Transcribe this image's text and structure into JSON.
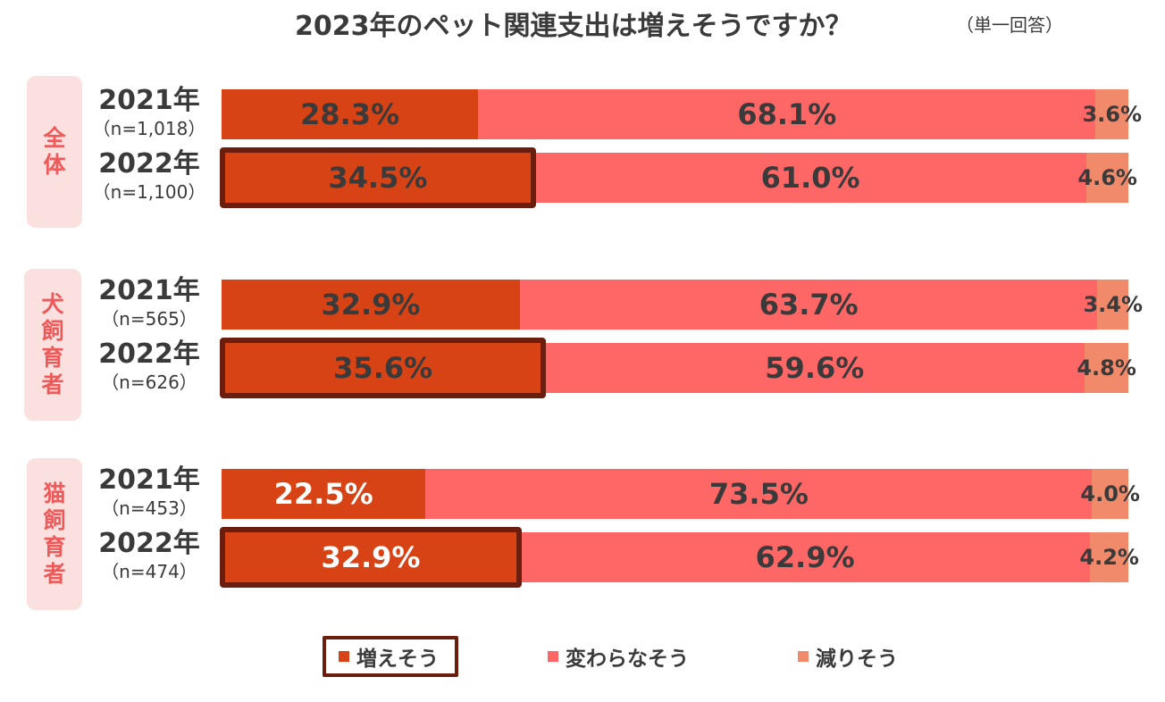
{
  "title": "2023年のペット関連支出は増えそうですか？",
  "subtitle": "（単一回答）",
  "colors": {
    "increase": "#d84315",
    "same": "#ff6666",
    "decrease": "#f08a6a",
    "highlight_border": "#6b1d0e",
    "group_bg": "#fbe0e0",
    "group_text": "#ee5a5a"
  },
  "chart_data": {
    "type": "bar",
    "orientation": "horizontal-stacked-100",
    "series": [
      {
        "name": "増えそう",
        "values": [
          28.3,
          34.5,
          32.9,
          35.6,
          22.5,
          32.9
        ]
      },
      {
        "name": "変わらなそう",
        "values": [
          68.1,
          61.0,
          63.7,
          59.6,
          73.5,
          62.9
        ]
      },
      {
        "name": "減りそう",
        "values": [
          3.6,
          4.6,
          3.4,
          4.8,
          4.0,
          4.2
        ]
      }
    ],
    "groups": [
      {
        "label": "全体",
        "rows": [
          {
            "year": "2021年",
            "n": "（n=1,018）",
            "values": [
              28.3,
              68.1,
              3.6
            ],
            "labels": [
              "28.3%",
              "68.1%",
              "3.6%"
            ],
            "highlight": false,
            "first_label_white": false
          },
          {
            "year": "2022年",
            "n": "（n=1,100）",
            "values": [
              34.5,
              61.0,
              4.6
            ],
            "labels": [
              "34.5%",
              "61.0%",
              "4.6%"
            ],
            "highlight": true,
            "first_label_white": false
          }
        ]
      },
      {
        "label": "犬飼育者",
        "rows": [
          {
            "year": "2021年",
            "n": "（n=565）",
            "values": [
              32.9,
              63.7,
              3.4
            ],
            "labels": [
              "32.9%",
              "63.7%",
              "3.4%"
            ],
            "highlight": false,
            "first_label_white": false
          },
          {
            "year": "2022年",
            "n": "（n=626）",
            "values": [
              35.6,
              59.6,
              4.8
            ],
            "labels": [
              "35.6%",
              "59.6%",
              "4.8%"
            ],
            "highlight": true,
            "first_label_white": false
          }
        ]
      },
      {
        "label": "猫飼育者",
        "rows": [
          {
            "year": "2021年",
            "n": "（n=453）",
            "values": [
              22.5,
              73.5,
              4.0
            ],
            "labels": [
              "22.5%",
              "73.5%",
              "4.0%"
            ],
            "highlight": false,
            "first_label_white": true
          },
          {
            "year": "2022年",
            "n": "（n=474）",
            "values": [
              32.9,
              62.9,
              4.2
            ],
            "labels": [
              "32.9%",
              "62.9%",
              "4.2%"
            ],
            "highlight": true,
            "first_label_white": true
          }
        ]
      }
    ],
    "legend": [
      "増えそう",
      "変わらなそう",
      "減りそう"
    ],
    "legend_position": "bottom"
  }
}
